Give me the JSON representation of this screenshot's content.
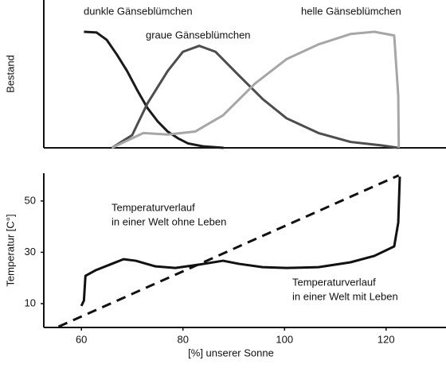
{
  "chart_data": [
    {
      "type": "line",
      "ylabel": "Bestand",
      "xlim": [
        52.6,
        131.8
      ],
      "ylim": [
        0,
        100
      ],
      "series": [
        {
          "name": "dunkle Gänseblümchen",
          "color": "#1a1a1a",
          "x": [
            60.5,
            63,
            65,
            67,
            69,
            71,
            73,
            75,
            77,
            79,
            81,
            84,
            88
          ],
          "values": [
            78.5,
            78,
            73,
            63,
            52,
            39,
            27,
            18,
            11,
            6.5,
            3,
            1,
            0
          ]
        },
        {
          "name": "graue Gänseblümchen",
          "color": "#4d4d4d",
          "x": [
            66,
            70,
            73,
            77,
            80,
            83.2,
            86.4,
            91,
            95.7,
            100.4,
            106.7,
            113,
            119.2,
            122.4
          ],
          "values": [
            0,
            8.6,
            30,
            52,
            65,
            69,
            65,
            49,
            33,
            20,
            10,
            4,
            1.6,
            0
          ]
        },
        {
          "name": "helle Gänseblümchen",
          "color": "#a6a6a6",
          "x": [
            66,
            72.2,
            77,
            82.4,
            87.9,
            94.2,
            100.4,
            106.7,
            113,
            117.7,
            121.6,
            122.4,
            122.5
          ],
          "values": [
            0,
            10,
            9,
            11,
            22,
            43.5,
            60,
            70,
            77,
            78.5,
            76,
            35,
            0
          ]
        }
      ]
    },
    {
      "type": "line",
      "ylabel": "Temperatur [C°]",
      "xlabel": "[%] unserer Sonne",
      "xlim": [
        52.6,
        131.8
      ],
      "ylim": [
        0.7,
        60.8
      ],
      "xticks": [
        60,
        80,
        100,
        120
      ],
      "yticks": [
        10,
        30,
        50
      ],
      "annotations": [
        "Temperaturverlauf",
        "in einer Welt ohne Leben",
        "Temperaturverlauf",
        "in einer Welt mit Leben"
      ],
      "series": [
        {
          "color": "#111111",
          "style": "dashed",
          "x": [
            55.5,
            122.5
          ],
          "values": [
            1,
            60
          ]
        },
        {
          "color": "#111111",
          "style": "solid",
          "x": [
            60,
            60.5,
            60.8,
            62.8,
            66,
            68.3,
            70.7,
            74.6,
            78.5,
            83.2,
            87.9,
            91,
            95.7,
            100.4,
            106.7,
            113,
            117.7,
            121.6,
            122.4,
            122.7
          ],
          "values": [
            9.1,
            11.2,
            20.8,
            23,
            25.5,
            27.3,
            26.7,
            24.5,
            23.9,
            25.2,
            26.7,
            25.5,
            24.2,
            23.9,
            24.2,
            26.1,
            28.6,
            32.3,
            41.6,
            59.5
          ]
        }
      ]
    }
  ]
}
